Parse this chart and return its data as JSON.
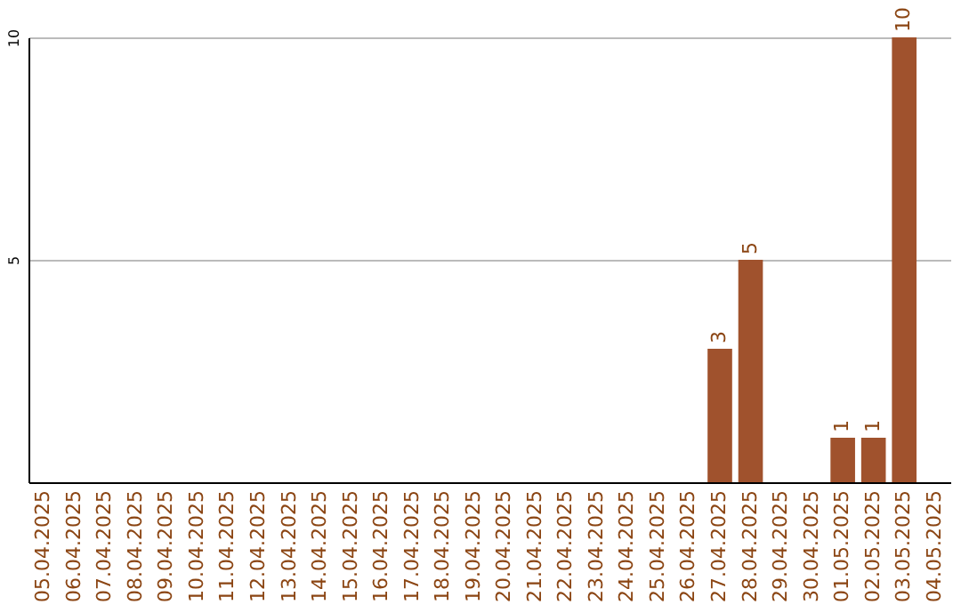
{
  "chart_data": {
    "type": "bar",
    "categories": [
      "05.04.2025",
      "06.04.2025",
      "07.04.2025",
      "08.04.2025",
      "09.04.2025",
      "10.04.2025",
      "11.04.2025",
      "12.04.2025",
      "13.04.2025",
      "14.04.2025",
      "15.04.2025",
      "16.04.2025",
      "17.04.2025",
      "18.04.2025",
      "19.04.2025",
      "20.04.2025",
      "21.04.2025",
      "22.04.2025",
      "23.04.2025",
      "24.04.2025",
      "25.04.2025",
      "26.04.2025",
      "27.04.2025",
      "28.04.2025",
      "29.04.2025",
      "30.04.2025",
      "01.05.2025",
      "02.05.2025",
      "03.05.2025",
      "04.05.2025"
    ],
    "values": [
      0,
      0,
      0,
      0,
      0,
      0,
      0,
      0,
      0,
      0,
      0,
      0,
      0,
      0,
      0,
      0,
      0,
      0,
      0,
      0,
      0,
      0,
      3,
      5,
      0,
      0,
      1,
      1,
      10,
      0
    ],
    "value_labels": [
      null,
      null,
      null,
      null,
      null,
      null,
      null,
      null,
      null,
      null,
      null,
      null,
      null,
      null,
      null,
      null,
      null,
      null,
      null,
      null,
      null,
      null,
      "3",
      "5",
      null,
      null,
      "1",
      "1",
      "10",
      null
    ],
    "color": "#a0522d",
    "ylim": [
      0,
      10
    ],
    "yticks": [
      5,
      10
    ],
    "grid": "y"
  }
}
